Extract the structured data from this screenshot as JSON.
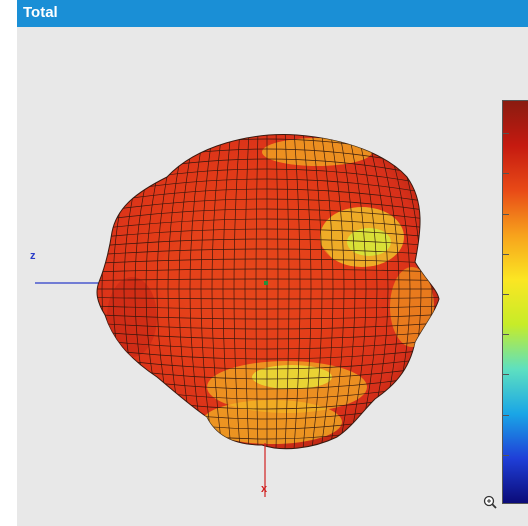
{
  "window": {
    "title": "Total"
  },
  "axes": {
    "z_label": "z",
    "x_label": "x"
  },
  "colors": {
    "title_bar": "#1a8fd6",
    "background": "#e8e8e8",
    "z_axis": "#2a3cc8",
    "x_axis": "#d02020",
    "colormap": [
      "#0b0b78",
      "#1f3fd8",
      "#1aa6e6",
      "#5ee0c0",
      "#c7ec28",
      "#fbe623",
      "#f7a21c",
      "#e84a17",
      "#c51a10",
      "#8a1b10"
    ]
  },
  "icons": {
    "zoom": "zoom-in-magnifier-icon"
  }
}
